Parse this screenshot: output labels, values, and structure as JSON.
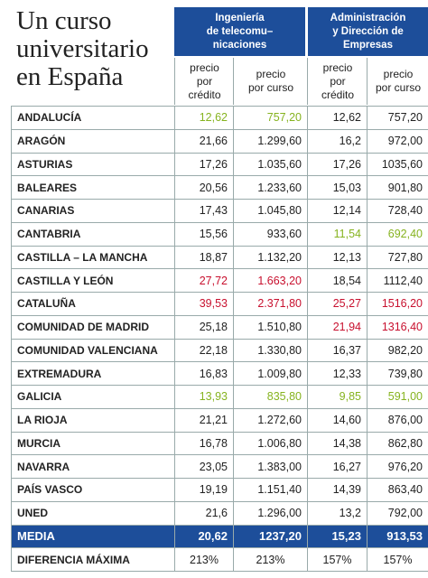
{
  "header": {
    "title_lines": [
      "Un curso",
      "universitario",
      "en España"
    ]
  },
  "table": {
    "groups": [
      {
        "lines": [
          "Ingeniería",
          "de telecomu–",
          "nicaciones"
        ]
      },
      {
        "lines": [
          "Administración",
          "y Dirección de",
          "Empresas"
        ]
      }
    ],
    "subheaders": [
      [
        "precio",
        "por",
        "crédito"
      ],
      [
        "precio",
        "por curso"
      ],
      [
        "precio",
        "por",
        "crédito"
      ],
      [
        "precio",
        "por curso"
      ]
    ],
    "rows": [
      [
        "ANDALUCÍA",
        "12,62",
        "757,20",
        "12,62",
        "757,20"
      ],
      [
        "ARAGÓN",
        "21,66",
        "1.299,60",
        "16,2",
        "972,00"
      ],
      [
        "ASTURIAS",
        "17,26",
        "1.035,60",
        "17,26",
        "1035,60"
      ],
      [
        "BALEARES",
        "20,56",
        "1.233,60",
        "15,03",
        "901,80"
      ],
      [
        "CANARIAS",
        "17,43",
        "1.045,80",
        "12,14",
        "728,40"
      ],
      [
        "CANTABRIA",
        "15,56",
        "933,60",
        "11,54",
        "692,40"
      ],
      [
        "CASTILLA – LA MANCHA",
        "18,87",
        "1.132,20",
        "12,13",
        "727,80"
      ],
      [
        "CASTILLA Y LEÓN",
        "27,72",
        "1.663,20",
        "18,54",
        "1112,40"
      ],
      [
        "CATALUÑA",
        "39,53",
        "2.371,80",
        "25,27",
        "1516,20"
      ],
      [
        "COMUNIDAD DE MADRID",
        "25,18",
        "1.510,80",
        "21,94",
        "1316,40"
      ],
      [
        "COMUNIDAD VALENCIANA",
        "22,18",
        "1.330,80",
        "16,37",
        "982,20"
      ],
      [
        "EXTREMADURA",
        "16,83",
        "1.009,80",
        "12,33",
        "739,80"
      ],
      [
        "GALICIA",
        "13,93",
        "835,80",
        "9,85",
        "591,00"
      ],
      [
        "LA RIOJA",
        "21,21",
        "1.272,60",
        "14,60",
        "876,00"
      ],
      [
        "MURCIA",
        "16,78",
        "1.006,80",
        "14,38",
        "862,80"
      ],
      [
        "NAVARRA",
        "23,05",
        "1.383,00",
        "16,27",
        "976,20"
      ],
      [
        "PAÍS VASCO",
        "19,19",
        "1.151,40",
        "14,39",
        "863,40"
      ],
      [
        "UNED",
        "21,6",
        "1.296,00",
        "13,2",
        "792,00"
      ],
      [
        "MEDIA",
        "20,62",
        "1237,20",
        "15,23",
        "913,53"
      ],
      [
        "DIFERENCIA MÁXIMA",
        "213%",
        "213%",
        "157%",
        "157%"
      ]
    ]
  }
}
